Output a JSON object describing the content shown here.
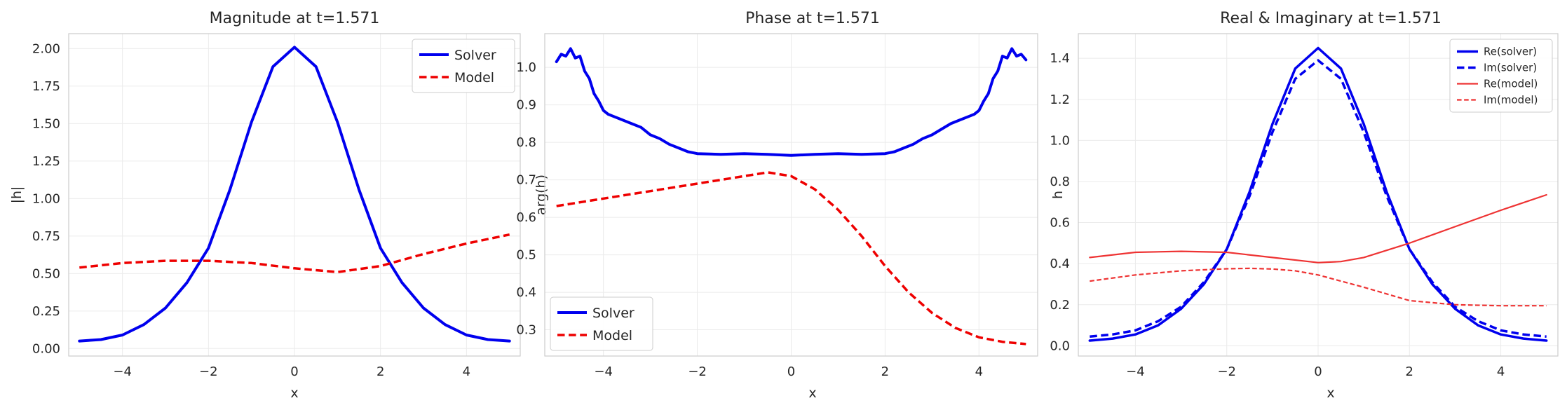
{
  "colors": {
    "solver": "#0000ee",
    "model": "#ee0000",
    "grid": "#ebebeb",
    "spine": "#cccccc"
  },
  "chart_data": [
    {
      "type": "line",
      "title": "Magnitude at t=1.571",
      "xlabel": "x",
      "ylabel": "|h|",
      "xlim": [
        -5.25,
        5.25
      ],
      "ylim": [
        -0.05,
        2.1
      ],
      "xticks": [
        -4,
        -2,
        0,
        2,
        4
      ],
      "yticks": [
        0.0,
        0.25,
        0.5,
        0.75,
        1.0,
        1.25,
        1.5,
        1.75,
        2.0
      ],
      "ytick_labels": [
        "0.00",
        "0.25",
        "0.50",
        "0.75",
        "1.00",
        "1.25",
        "1.50",
        "1.75",
        "2.00"
      ],
      "grid": true,
      "legend_position": "top-right",
      "series": [
        {
          "name": "Solver",
          "style": "solid",
          "color": "#0000ee",
          "width": 4,
          "x": [
            -5,
            -4.5,
            -4,
            -3.5,
            -3,
            -2.5,
            -2,
            -1.5,
            -1,
            -0.5,
            0,
            0.5,
            1,
            1.5,
            2,
            2.5,
            3,
            3.5,
            4,
            4.5,
            5
          ],
          "y": [
            0.05,
            0.06,
            0.09,
            0.16,
            0.27,
            0.44,
            0.67,
            1.06,
            1.51,
            1.88,
            2.01,
            1.88,
            1.51,
            1.06,
            0.67,
            0.44,
            0.27,
            0.16,
            0.09,
            0.06,
            0.05
          ]
        },
        {
          "name": "Model",
          "style": "dashed",
          "color": "#ee0000",
          "width": 3.5,
          "x": [
            -5,
            -4,
            -3,
            -2,
            -1,
            0,
            1,
            2,
            3,
            4,
            5
          ],
          "y": [
            0.54,
            0.57,
            0.585,
            0.585,
            0.57,
            0.535,
            0.51,
            0.55,
            0.63,
            0.7,
            0.76
          ]
        }
      ]
    },
    {
      "type": "line",
      "title": "Phase at t=1.571",
      "xlabel": "x",
      "ylabel": "arg(h)",
      "xlim": [
        -5.25,
        5.25
      ],
      "ylim": [
        0.23,
        1.09
      ],
      "xticks": [
        -4,
        -2,
        0,
        2,
        4
      ],
      "yticks": [
        0.3,
        0.4,
        0.5,
        0.6,
        0.7,
        0.8,
        0.9,
        1.0
      ],
      "ytick_labels": [
        "0.3",
        "0.4",
        "0.5",
        "0.6",
        "0.7",
        "0.8",
        "0.9",
        "1.0"
      ],
      "grid": true,
      "legend_position": "bottom-left",
      "series": [
        {
          "name": "Solver",
          "style": "solid",
          "color": "#0000ee",
          "width": 4,
          "x": [
            -5,
            -4.9,
            -4.8,
            -4.7,
            -4.6,
            -4.5,
            -4.4,
            -4.3,
            -4.2,
            -4.1,
            -4,
            -3.9,
            -3.8,
            -3.6,
            -3.4,
            -3.2,
            -3,
            -2.8,
            -2.6,
            -2.4,
            -2.2,
            -2,
            -1.5,
            -1,
            -0.5,
            0,
            0.5,
            1,
            1.5,
            2,
            2.2,
            2.4,
            2.6,
            2.8,
            3,
            3.2,
            3.4,
            3.6,
            3.8,
            3.9,
            4,
            4.1,
            4.2,
            4.3,
            4.4,
            4.5,
            4.6,
            4.7,
            4.8,
            4.9,
            5
          ],
          "y": [
            1.015,
            1.035,
            1.03,
            1.05,
            1.025,
            1.03,
            0.99,
            0.97,
            0.93,
            0.91,
            0.885,
            0.875,
            0.87,
            0.86,
            0.85,
            0.84,
            0.82,
            0.81,
            0.795,
            0.785,
            0.775,
            0.77,
            0.768,
            0.77,
            0.768,
            0.765,
            0.768,
            0.77,
            0.768,
            0.77,
            0.775,
            0.785,
            0.795,
            0.81,
            0.82,
            0.835,
            0.85,
            0.86,
            0.87,
            0.875,
            0.885,
            0.91,
            0.93,
            0.97,
            0.99,
            1.03,
            1.025,
            1.05,
            1.03,
            1.035,
            1.02
          ]
        },
        {
          "name": "Model",
          "style": "dashed",
          "color": "#ee0000",
          "width": 3.5,
          "x": [
            -5,
            -4,
            -3,
            -2,
            -1,
            -0.5,
            0,
            0.5,
            1,
            1.5,
            2,
            2.5,
            3,
            3.5,
            4,
            4.5,
            5
          ],
          "y": [
            0.63,
            0.65,
            0.67,
            0.69,
            0.71,
            0.72,
            0.71,
            0.675,
            0.62,
            0.55,
            0.47,
            0.4,
            0.345,
            0.305,
            0.28,
            0.268,
            0.262
          ]
        }
      ]
    },
    {
      "type": "line",
      "title": "Real & Imaginary at t=1.571",
      "xlabel": "x",
      "ylabel": "h",
      "xlim": [
        -5.25,
        5.25
      ],
      "ylim": [
        -0.05,
        1.52
      ],
      "xticks": [
        -4,
        -2,
        0,
        2,
        4
      ],
      "yticks": [
        0.0,
        0.2,
        0.4,
        0.6,
        0.8,
        1.0,
        1.2,
        1.4
      ],
      "ytick_labels": [
        "0.0",
        "0.2",
        "0.4",
        "0.6",
        "0.8",
        "1.0",
        "1.2",
        "1.4"
      ],
      "grid": true,
      "legend_position": "top-right",
      "series": [
        {
          "name": "Re(solver)",
          "style": "solid",
          "color": "#0000ee",
          "width": 3.5,
          "x": [
            -5,
            -4.5,
            -4,
            -3.5,
            -3,
            -2.5,
            -2,
            -1.5,
            -1,
            -0.5,
            0,
            0.5,
            1,
            1.5,
            2,
            2.5,
            3,
            3.5,
            4,
            4.5,
            5
          ],
          "y": [
            0.025,
            0.035,
            0.055,
            0.1,
            0.18,
            0.3,
            0.47,
            0.75,
            1.08,
            1.35,
            1.45,
            1.35,
            1.08,
            0.75,
            0.47,
            0.3,
            0.18,
            0.1,
            0.055,
            0.035,
            0.025
          ]
        },
        {
          "name": "Im(solver)",
          "style": "dashed",
          "color": "#0000ee",
          "width": 3.5,
          "x": [
            -5,
            -4.5,
            -4,
            -3.5,
            -3,
            -2.5,
            -2,
            -1.5,
            -1,
            -0.5,
            0,
            0.5,
            1,
            1.5,
            2,
            2.5,
            3,
            3.5,
            4,
            4.5,
            5
          ],
          "y": [
            0.045,
            0.055,
            0.075,
            0.12,
            0.19,
            0.31,
            0.47,
            0.73,
            1.04,
            1.3,
            1.39,
            1.3,
            1.04,
            0.73,
            0.47,
            0.31,
            0.19,
            0.12,
            0.075,
            0.055,
            0.045
          ]
        },
        {
          "name": "Re(model)",
          "style": "solid",
          "color": "#ee3333",
          "width": 2.2,
          "x": [
            -5,
            -4,
            -3,
            -2,
            -1,
            0,
            0.5,
            1,
            2,
            3,
            4,
            5
          ],
          "y": [
            0.43,
            0.455,
            0.46,
            0.455,
            0.43,
            0.405,
            0.41,
            0.43,
            0.5,
            0.58,
            0.66,
            0.735
          ]
        },
        {
          "name": "Im(model)",
          "style": "dashed",
          "color": "#ee3333",
          "width": 2.2,
          "x": [
            -5,
            -4,
            -3,
            -2,
            -1.5,
            -1,
            -0.5,
            0,
            1,
            2,
            3,
            4,
            5
          ],
          "y": [
            0.315,
            0.345,
            0.365,
            0.375,
            0.377,
            0.374,
            0.365,
            0.345,
            0.285,
            0.22,
            0.2,
            0.195,
            0.195
          ]
        }
      ]
    }
  ]
}
